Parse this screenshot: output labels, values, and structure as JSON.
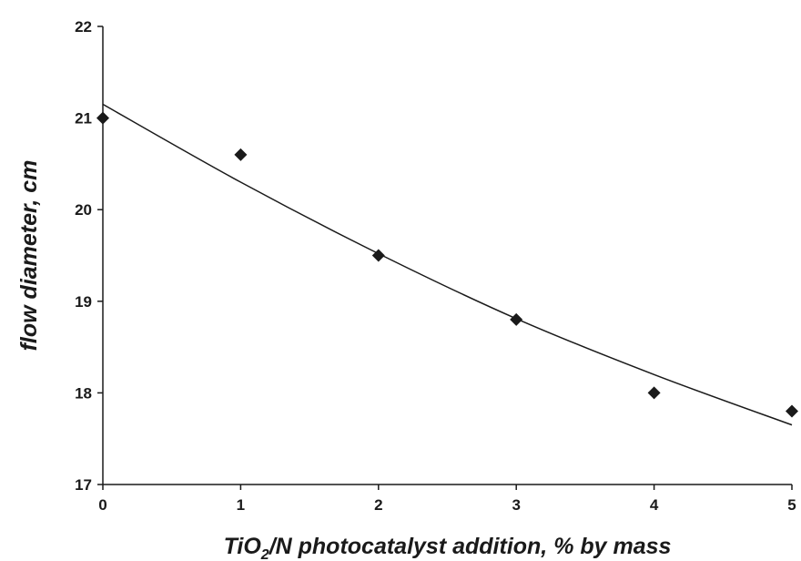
{
  "chart_data": {
    "type": "scatter",
    "xlabel": {
      "pre": "TiO",
      "sub": "2",
      "post": "/N photocatalyst addition, % by mass"
    },
    "ylabel": "flow diameter, cm",
    "xlim": [
      0,
      5
    ],
    "ylim": [
      17,
      22
    ],
    "x_ticks": [
      "0",
      "1",
      "2",
      "3",
      "4",
      "5"
    ],
    "y_ticks": [
      "17",
      "18",
      "19",
      "20",
      "21",
      "22"
    ],
    "grid": false,
    "legend": "none",
    "series": [
      {
        "marker": "diamond",
        "color": "#1a1a1a",
        "points": [
          {
            "x": 0,
            "y": 21.0
          },
          {
            "x": 1,
            "y": 20.6
          },
          {
            "x": 2,
            "y": 19.5
          },
          {
            "x": 3,
            "y": 18.8
          },
          {
            "x": 4,
            "y": 18.0
          },
          {
            "x": 5,
            "y": 17.8
          }
        ]
      }
    ],
    "trendline": {
      "type": "polynomial",
      "color": "#1a1a1a",
      "curve": [
        {
          "x": 0,
          "y": 21.15
        },
        {
          "x": 1,
          "y": 20.3
        },
        {
          "x": 2,
          "y": 19.52
        },
        {
          "x": 3,
          "y": 18.81
        },
        {
          "x": 4,
          "y": 18.2
        },
        {
          "x": 5,
          "y": 17.65
        }
      ]
    }
  }
}
